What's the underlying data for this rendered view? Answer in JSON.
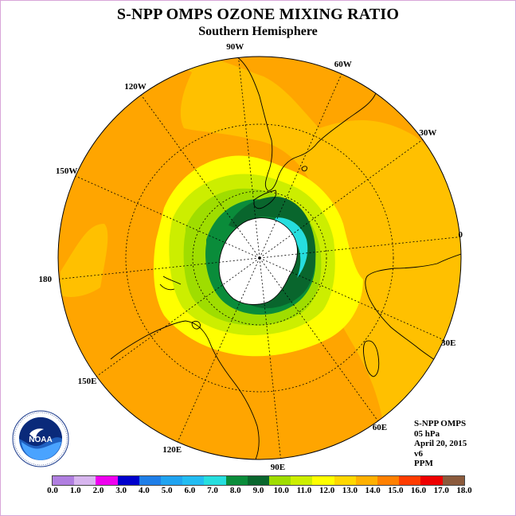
{
  "title": "S-NPP OMPS OZONE MIXING RATIO",
  "subtitle": "Southern Hemisphere",
  "longitude_labels": [
    {
      "text": "90W",
      "lon": -90
    },
    {
      "text": "60W",
      "lon": -60
    },
    {
      "text": "30W",
      "lon": -30
    },
    {
      "text": "0",
      "lon": 0
    },
    {
      "text": "30E",
      "lon": 30
    },
    {
      "text": "60E",
      "lon": 60
    },
    {
      "text": "90E",
      "lon": 90
    },
    {
      "text": "120E",
      "lon": 120
    },
    {
      "text": "150E",
      "lon": 150
    },
    {
      "text": "180",
      "lon": 180
    },
    {
      "text": "150W",
      "lon": -150
    },
    {
      "text": "120W",
      "lon": -120
    }
  ],
  "info": {
    "instrument": "S-NPP OMPS",
    "pressure": "05 hPa",
    "date": "April 20, 2015",
    "version": "v6",
    "units": "PPM"
  },
  "logo": {
    "text": "NOAA",
    "icon": "noaa-logo-icon"
  },
  "colorbar": {
    "ticks": [
      "0.0",
      "1.0",
      "2.0",
      "3.0",
      "4.0",
      "5.0",
      "6.0",
      "7.0",
      "8.0",
      "9.0",
      "10.0",
      "11.0",
      "12.0",
      "13.0",
      "14.0",
      "15.0",
      "16.0",
      "17.0",
      "18.0"
    ],
    "colors": [
      "#b07ee0",
      "#d7b5ee",
      "#ee00ee",
      "#0000cc",
      "#1e7ee8",
      "#1fa3f0",
      "#22bcf2",
      "#26dede",
      "#0a8c3a",
      "#09662d",
      "#9fdd00",
      "#ccee00",
      "#ffff00",
      "#ffd700",
      "#ffb000",
      "#ff8000",
      "#ff3c00",
      "#ee0000",
      "#8b5a3c"
    ]
  },
  "map_colors": {
    "ocean_14_15": "#ffa500",
    "band_13_14": "#ffc000",
    "band_12_13": "#ffff00",
    "band_11_12": "#ccee00",
    "band_10_11": "#9fdd00",
    "band_9_10": "#0a8c3a",
    "band_8_9": "#09662d",
    "band_7_8": "#26dede",
    "antarctica": "#ffffff"
  }
}
